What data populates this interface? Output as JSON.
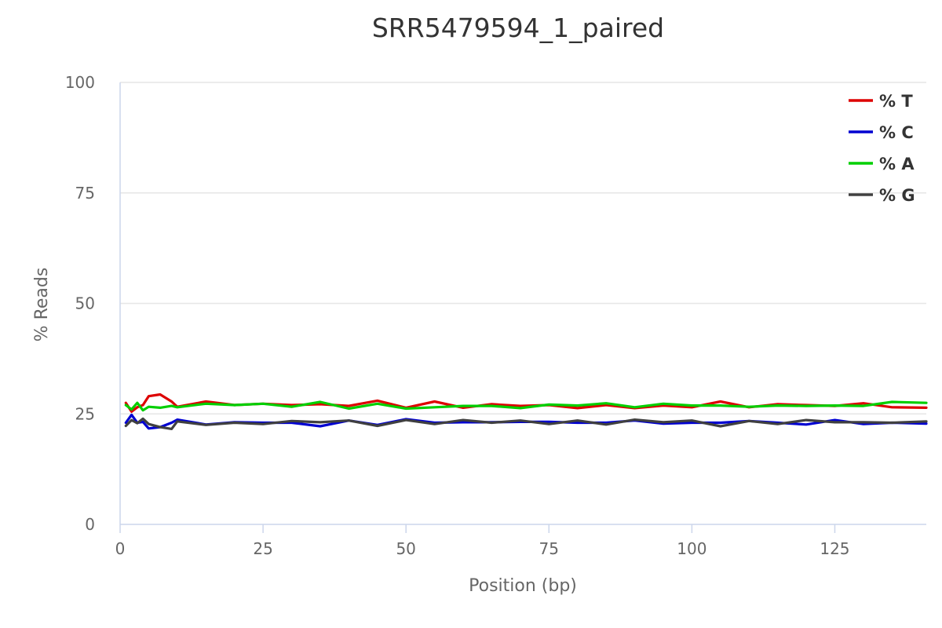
{
  "chart_data": {
    "type": "line",
    "title": "SRR5479594_1_paired",
    "xlabel": "Position (bp)",
    "ylabel": "% Reads",
    "xlim": [
      0,
      141
    ],
    "ylim": [
      0,
      100
    ],
    "xticks": [
      0,
      25,
      50,
      75,
      100,
      125
    ],
    "yticks": [
      0,
      25,
      50,
      75,
      100
    ],
    "grid": true,
    "legend_placement": "top-right",
    "series": [
      {
        "name": "% T",
        "color": "#dd0000",
        "x": [
          1,
          2,
          3,
          4,
          5,
          7,
          9,
          10,
          15,
          20,
          25,
          30,
          35,
          40,
          45,
          50,
          55,
          60,
          65,
          70,
          75,
          80,
          85,
          90,
          95,
          100,
          105,
          110,
          115,
          120,
          125,
          130,
          135,
          141
        ],
        "y": [
          27.5,
          25.5,
          26.5,
          27.0,
          29.0,
          29.4,
          27.8,
          26.6,
          27.8,
          27.0,
          27.3,
          27.0,
          27.2,
          26.8,
          28.0,
          26.4,
          27.8,
          26.4,
          27.2,
          26.8,
          27.0,
          26.3,
          27.0,
          26.3,
          26.9,
          26.5,
          27.8,
          26.5,
          27.2,
          27.0,
          26.8,
          27.4,
          26.5,
          26.4
        ]
      },
      {
        "name": "% C",
        "color": "#0000d1",
        "x": [
          1,
          2,
          3,
          4,
          5,
          7,
          9,
          10,
          15,
          20,
          25,
          30,
          35,
          40,
          45,
          50,
          55,
          60,
          65,
          70,
          75,
          80,
          85,
          90,
          95,
          100,
          105,
          110,
          115,
          120,
          125,
          130,
          135,
          141
        ],
        "y": [
          23.0,
          24.8,
          23.0,
          23.2,
          21.7,
          22.0,
          23.0,
          23.7,
          22.6,
          23.1,
          23.0,
          23.0,
          22.2,
          23.5,
          22.5,
          23.8,
          23.0,
          23.1,
          23.1,
          23.2,
          23.2,
          23.0,
          23.0,
          23.5,
          22.8,
          23.0,
          23.0,
          23.4,
          23.0,
          22.6,
          23.6,
          22.7,
          23.0,
          22.8
        ]
      },
      {
        "name": "% A",
        "color": "#00cf00",
        "x": [
          1,
          2,
          3,
          4,
          5,
          7,
          9,
          10,
          15,
          20,
          25,
          30,
          35,
          40,
          45,
          50,
          55,
          60,
          65,
          70,
          75,
          80,
          85,
          90,
          95,
          100,
          105,
          110,
          115,
          120,
          125,
          130,
          135,
          141
        ],
        "y": [
          27.0,
          26.0,
          27.5,
          25.8,
          26.6,
          26.4,
          26.8,
          26.5,
          27.3,
          27.0,
          27.3,
          26.6,
          27.7,
          26.2,
          27.3,
          26.2,
          26.5,
          26.8,
          26.8,
          26.3,
          27.1,
          26.9,
          27.4,
          26.5,
          27.3,
          26.9,
          26.9,
          26.6,
          26.9,
          26.8,
          26.9,
          26.8,
          27.7,
          27.5
        ]
      },
      {
        "name": "% G",
        "color": "#404040",
        "x": [
          1,
          2,
          3,
          4,
          5,
          7,
          9,
          10,
          15,
          20,
          25,
          30,
          35,
          40,
          45,
          50,
          55,
          60,
          65,
          70,
          75,
          80,
          85,
          90,
          95,
          100,
          105,
          110,
          115,
          120,
          125,
          130,
          135,
          141
        ],
        "y": [
          22.3,
          23.6,
          22.9,
          23.9,
          22.7,
          22.0,
          21.6,
          23.3,
          22.5,
          23.0,
          22.7,
          23.4,
          23.1,
          23.5,
          22.3,
          23.6,
          22.7,
          23.6,
          23.0,
          23.5,
          22.7,
          23.5,
          22.6,
          23.7,
          23.1,
          23.5,
          22.2,
          23.4,
          22.7,
          23.6,
          23.1,
          23.1,
          23.0,
          23.3
        ]
      }
    ]
  }
}
